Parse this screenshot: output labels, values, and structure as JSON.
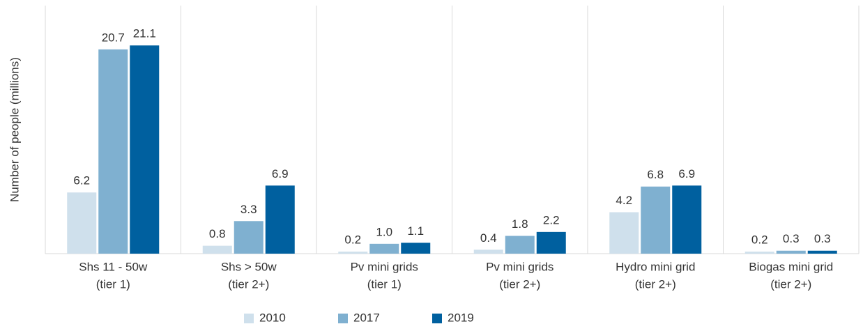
{
  "chart_data": {
    "type": "bar",
    "y_label": "Number of people (millions)",
    "categories": [
      [
        "Shs 11 - 50w",
        "(tier 1)"
      ],
      [
        "Shs > 50w",
        "(tier 2+)"
      ],
      [
        "Pv mini grids",
        "(tier 1)"
      ],
      [
        "Pv mini grids",
        "(tier 2+)"
      ],
      [
        "Hydro mini grid",
        "(tier 2+)"
      ],
      [
        "Biogas mini grid",
        "(tier 2+)"
      ]
    ],
    "series": [
      {
        "name": "2010",
        "color": "#cfe0ec",
        "values": [
          6.2,
          0.8,
          0.2,
          0.4,
          4.2,
          0.2
        ],
        "value_labels": [
          "6.2",
          "0.8",
          "0.2",
          "0.4",
          "4.2",
          "0.2"
        ]
      },
      {
        "name": "2017",
        "color": "#7fb0d0",
        "values": [
          20.7,
          3.3,
          1.0,
          1.8,
          6.8,
          0.3
        ],
        "value_labels": [
          "20.7",
          "3.3",
          "1.0",
          "1.8",
          "6.8",
          "0.3"
        ]
      },
      {
        "name": "2019",
        "color": "#00609f",
        "values": [
          21.1,
          6.9,
          1.1,
          2.2,
          6.9,
          0.3
        ],
        "value_labels": [
          "21.1",
          "6.9",
          "1.1",
          "2.2",
          "6.9",
          "0.3"
        ]
      }
    ],
    "ylim": [
      0,
      25
    ],
    "legend": "bottom"
  }
}
